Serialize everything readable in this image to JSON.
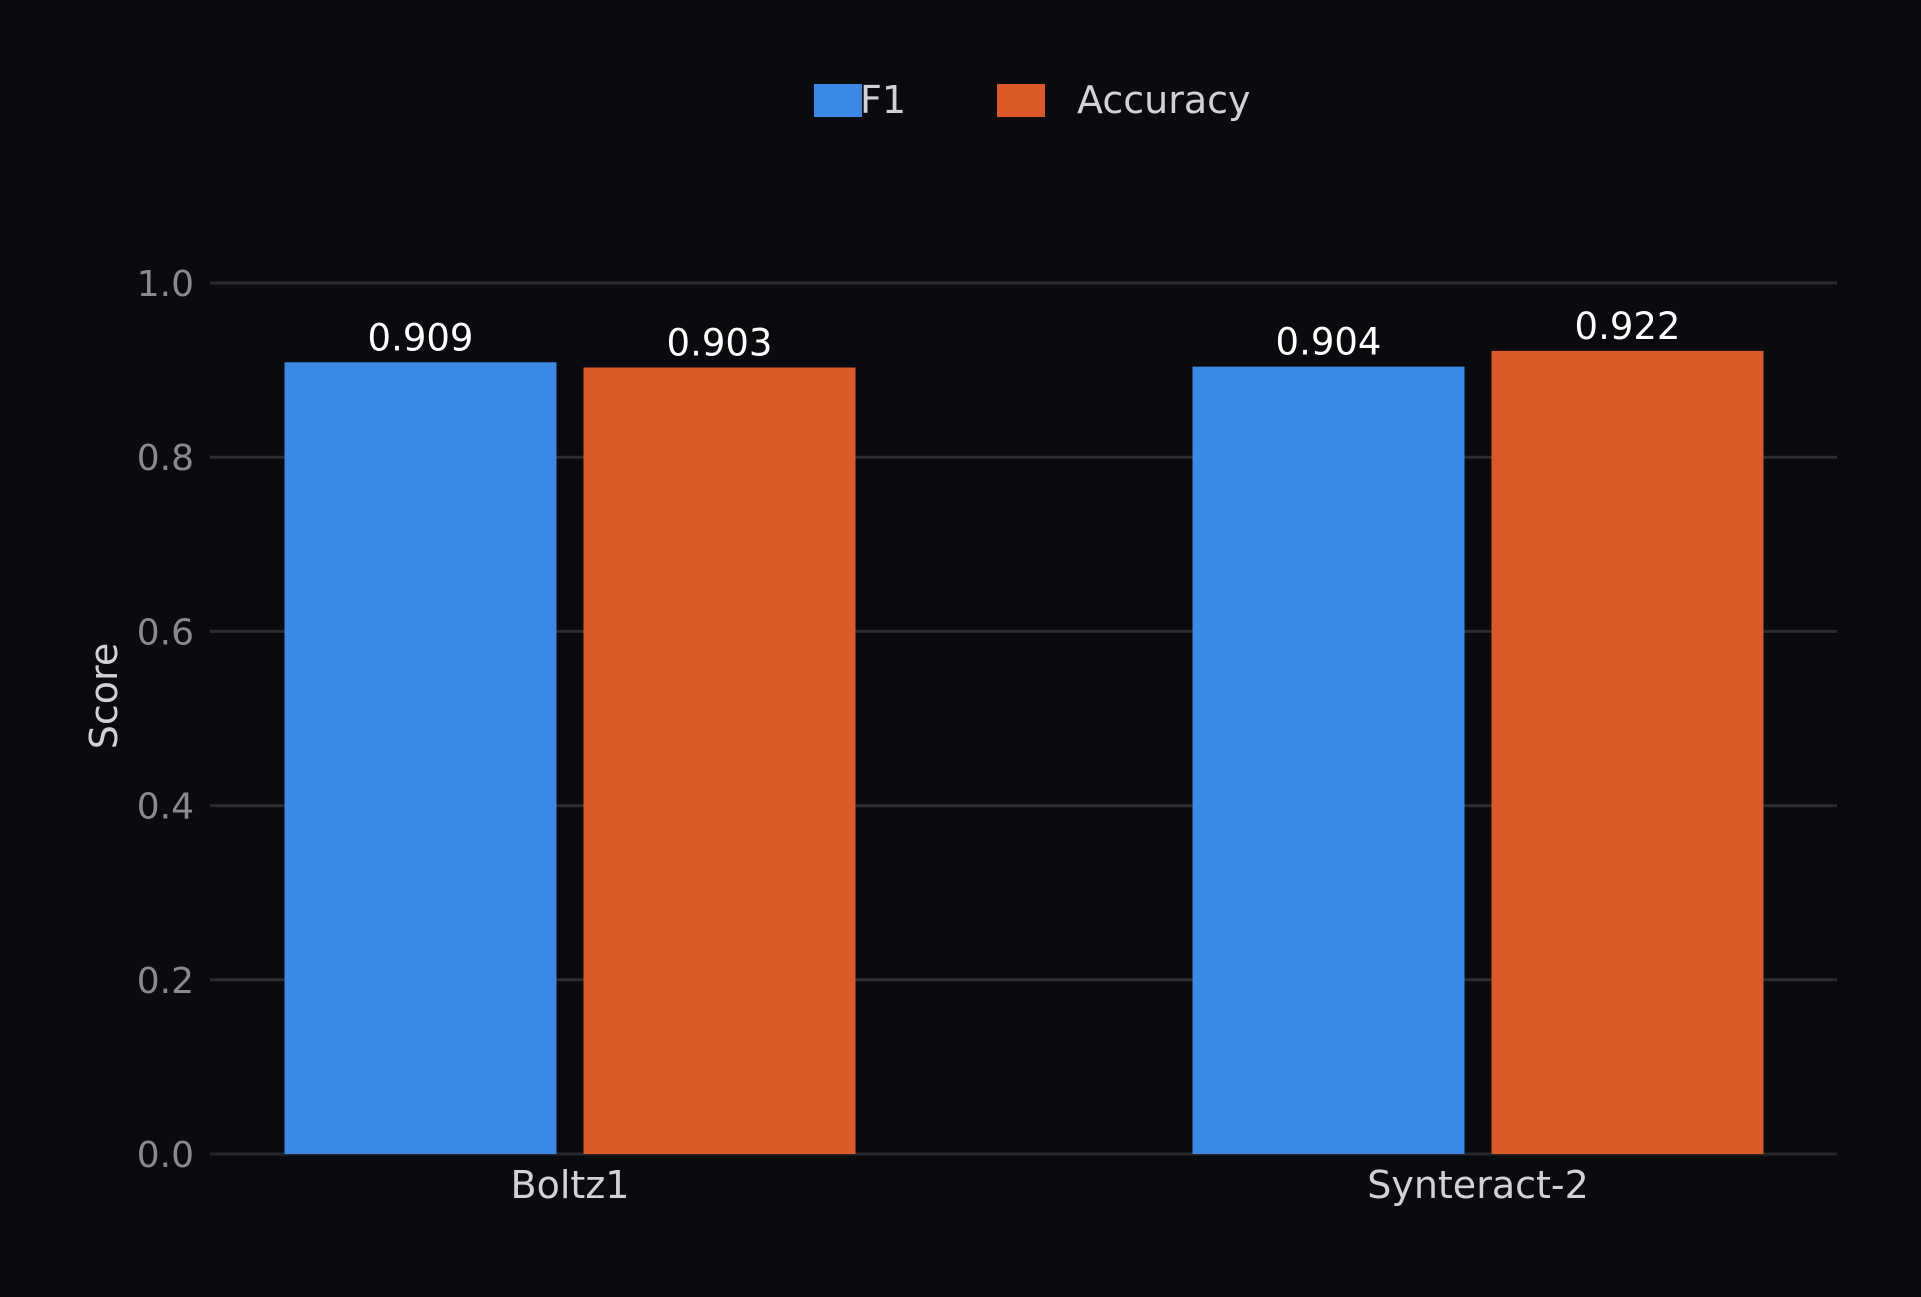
{
  "chart_data": {
    "type": "bar",
    "categories": [
      "Boltz1",
      "Synteract-2"
    ],
    "series": [
      {
        "name": "F1",
        "values": [
          0.909,
          0.904
        ],
        "color": "#3b88e5"
      },
      {
        "name": "Accuracy",
        "values": [
          0.903,
          0.922
        ],
        "color": "#d95a28"
      }
    ],
    "value_labels": [
      [
        "0.909",
        "0.903"
      ],
      [
        "0.904",
        "0.922"
      ]
    ],
    "title": "",
    "xlabel": "",
    "ylabel": "Score",
    "ylim": [
      0,
      1.0
    ],
    "yticks": [
      "0.0",
      "0.2",
      "0.4",
      "0.6",
      "0.8",
      "1.0"
    ],
    "grid": true,
    "legend_position": "top-center",
    "background": "#0a0b0f",
    "gridline_color": "#2c2d31"
  }
}
